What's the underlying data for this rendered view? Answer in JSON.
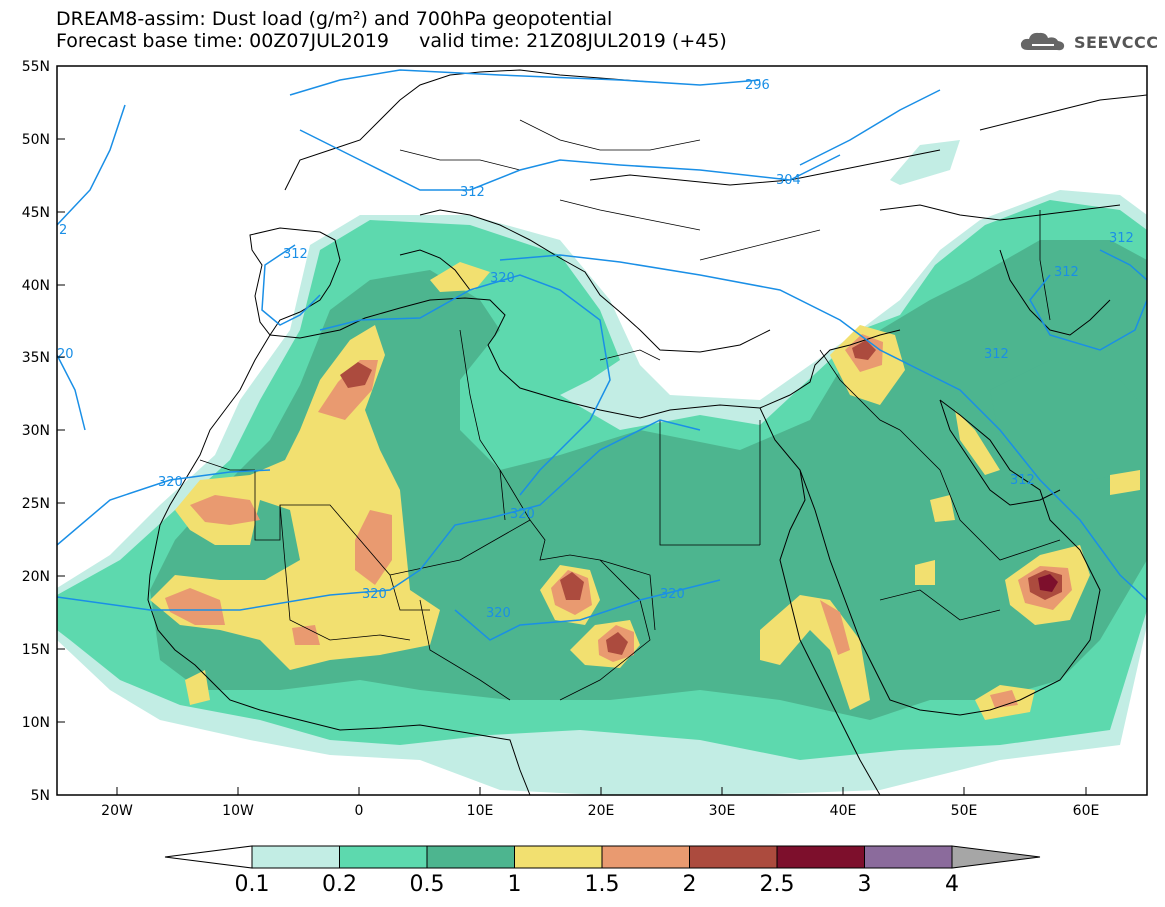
{
  "header": {
    "title_line1": "DREAM8-assim: Dust load (g/m²) and 700hPa geopotential",
    "title_line2": "Forecast base time: 00Z07JUL2019     valid time: 21Z08JUL2019 (+45)"
  },
  "logo": {
    "icon": "cloud-icon",
    "text": "SEEVCCC"
  },
  "map": {
    "lat_labels": [
      "55N",
      "50N",
      "45N",
      "40N",
      "35N",
      "30N",
      "25N",
      "20N",
      "15N",
      "10N",
      "5N"
    ],
    "lon_labels": [
      "20W",
      "10W",
      "0",
      "10E",
      "20E",
      "30E",
      "40E",
      "50E",
      "60E"
    ],
    "contour_labels": [
      "296",
      "304",
      "312",
      "312",
      "312",
      "312",
      "312",
      "312",
      "320",
      "320",
      "320",
      "320",
      "320",
      "320",
      "2",
      "20"
    ]
  },
  "colorbar": {
    "labels": [
      "0.1",
      "0.2",
      "0.5",
      "1",
      "1.5",
      "2",
      "2.5",
      "3",
      "4"
    ],
    "colors": [
      "#c2ede4",
      "#5dd9ae",
      "#4db58f",
      "#f2e070",
      "#e99a70",
      "#ac4b3e",
      "#7d0f2c",
      "#8b6b9c"
    ],
    "over_color": "#a6a6a6",
    "under_color": "#ffffff"
  },
  "colors": {
    "contour": "#1a8fe6",
    "land_border": "#000000"
  }
}
